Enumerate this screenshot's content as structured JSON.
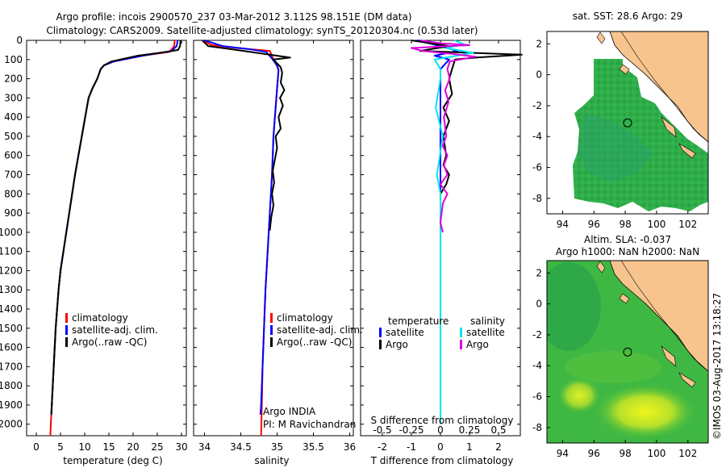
{
  "header": {
    "line1": "Argo profile: incois 2900570_237 03-Mar-2012 3.112S 98.151E (DM data)",
    "line2": "Climatology: CARS2009. Satellite-adjusted climatology: synTS_20120304.nc (0.53d later)"
  },
  "colors": {
    "climatology": "#ff0000",
    "satellite": "#0000ff",
    "argo": "#000000",
    "s_satellite": "#00e5ee",
    "s_argo": "#dd00dd",
    "land": "#f7c48e",
    "sea_green": "#2fae4a",
    "sea_teal": "#2aa36a",
    "sea_yellow": "#e6f21e"
  },
  "depth_axis": {
    "ticks": [
      0,
      100,
      200,
      300,
      400,
      500,
      600,
      700,
      800,
      900,
      1000,
      1100,
      1200,
      1300,
      1400,
      1500,
      1600,
      1700,
      1800,
      1900,
      2000
    ],
    "range": [
      0,
      2060
    ]
  },
  "chart_data": [
    {
      "type": "line",
      "name": "temperature",
      "xlabel": "temperature (deg C)",
      "xlim": [
        -2,
        31
      ],
      "xticks": [
        0,
        5,
        10,
        15,
        20,
        25,
        30
      ],
      "ylim": [
        0,
        2060
      ],
      "series": [
        {
          "name": "climatology",
          "color_key": "climatology",
          "points": [
            [
              28.6,
              0
            ],
            [
              28.5,
              30
            ],
            [
              27.5,
              60
            ],
            [
              22,
              80
            ],
            [
              16,
              110
            ],
            [
              14,
              130
            ],
            [
              13.3,
              150
            ],
            [
              12.6,
              200
            ],
            [
              11.6,
              250
            ],
            [
              10.8,
              300
            ],
            [
              10.1,
              400
            ],
            [
              9.4,
              500
            ],
            [
              8.7,
              600
            ],
            [
              8.0,
              700
            ],
            [
              7.4,
              800
            ],
            [
              6.8,
              900
            ],
            [
              6.2,
              1000
            ],
            [
              5.6,
              1100
            ],
            [
              5.0,
              1200
            ],
            [
              4.6,
              1300
            ],
            [
              4.3,
              1400
            ],
            [
              4.0,
              1500
            ],
            [
              3.8,
              1600
            ],
            [
              3.6,
              1700
            ],
            [
              3.4,
              1800
            ],
            [
              3.2,
              1900
            ],
            [
              3.0,
              2000
            ],
            [
              2.9,
              2060
            ]
          ]
        },
        {
          "name": "satellite-adj. clim.",
          "color_key": "satellite",
          "points": [
            [
              29.2,
              0
            ],
            [
              29.0,
              30
            ],
            [
              28.0,
              55
            ],
            [
              22,
              80
            ],
            [
              16,
              110
            ],
            [
              14,
              130
            ],
            [
              13.3,
              150
            ],
            [
              12.6,
              200
            ],
            [
              11.6,
              250
            ],
            [
              10.8,
              300
            ],
            [
              10.1,
              400
            ],
            [
              9.4,
              500
            ],
            [
              8.7,
              600
            ],
            [
              8.0,
              700
            ],
            [
              7.4,
              800
            ],
            [
              6.8,
              900
            ],
            [
              6.2,
              1000
            ],
            [
              5.6,
              1100
            ],
            [
              5.0,
              1200
            ],
            [
              4.6,
              1300
            ],
            [
              4.3,
              1400
            ],
            [
              4.0,
              1500
            ],
            [
              3.8,
              1600
            ],
            [
              3.6,
              1700
            ],
            [
              3.4,
              1800
            ],
            [
              3.2,
              1900
            ],
            [
              3.1,
              1950
            ]
          ]
        },
        {
          "name": "Argo(..raw -QC)",
          "color_key": "argo",
          "points": [
            [
              29.8,
              0
            ],
            [
              29.7,
              30
            ],
            [
              29.3,
              50
            ],
            [
              27,
              60
            ],
            [
              21,
              80
            ],
            [
              15.5,
              110
            ],
            [
              14,
              130
            ],
            [
              13.3,
              150
            ],
            [
              12.6,
              200
            ],
            [
              11.6,
              250
            ],
            [
              10.8,
              300
            ],
            [
              10.1,
              400
            ],
            [
              9.4,
              500
            ],
            [
              8.7,
              600
            ],
            [
              8.0,
              700
            ],
            [
              7.4,
              800
            ],
            [
              6.8,
              900
            ],
            [
              6.2,
              1000
            ],
            [
              5.6,
              1100
            ],
            [
              5.0,
              1200
            ],
            [
              4.6,
              1300
            ],
            [
              4.3,
              1400
            ],
            [
              4.0,
              1500
            ],
            [
              3.8,
              1600
            ],
            [
              3.6,
              1700
            ],
            [
              3.4,
              1800
            ],
            [
              3.2,
              1900
            ],
            [
              3.1,
              1950
            ]
          ]
        }
      ],
      "legend": [
        {
          "label": "climatology",
          "color_key": "climatology"
        },
        {
          "label": "satellite-adj. clim.",
          "color_key": "satellite"
        },
        {
          "label": "Argo(..raw -QC)",
          "color_key": "argo"
        }
      ]
    },
    {
      "type": "line",
      "name": "salinity",
      "xlabel": "salinity",
      "xlim": [
        33.85,
        36.05
      ],
      "xticks": [
        34,
        34.5,
        35,
        35.5,
        36
      ],
      "ylim": [
        0,
        2060
      ],
      "series": [
        {
          "name": "climatology",
          "color_key": "climatology",
          "points": [
            [
              33.97,
              0
            ],
            [
              34.1,
              25
            ],
            [
              34.45,
              40
            ],
            [
              34.9,
              55
            ],
            [
              34.95,
              100
            ],
            [
              35.02,
              150
            ],
            [
              35.0,
              250
            ],
            [
              34.98,
              350
            ],
            [
              34.95,
              500
            ],
            [
              34.93,
              700
            ],
            [
              34.9,
              900
            ],
            [
              34.87,
              1100
            ],
            [
              34.84,
              1300
            ],
            [
              34.82,
              1500
            ],
            [
              34.8,
              1700
            ],
            [
              34.79,
              1900
            ],
            [
              34.78,
              2060
            ]
          ]
        },
        {
          "name": "satellite-adj. clim.",
          "color_key": "satellite",
          "points": [
            [
              34.0,
              0
            ],
            [
              34.25,
              30
            ],
            [
              34.6,
              45
            ],
            [
              34.85,
              60
            ],
            [
              34.92,
              90
            ],
            [
              35.0,
              130
            ],
            [
              35.02,
              160
            ],
            [
              35.0,
              250
            ],
            [
              34.98,
              350
            ],
            [
              34.95,
              500
            ],
            [
              34.93,
              700
            ],
            [
              34.9,
              900
            ],
            [
              34.87,
              1100
            ],
            [
              34.84,
              1300
            ],
            [
              34.82,
              1500
            ],
            [
              34.8,
              1700
            ],
            [
              34.78,
              1900
            ],
            [
              34.77,
              1950
            ]
          ]
        },
        {
          "name": "Argo(..raw -QC)",
          "color_key": "argo",
          "points": [
            [
              33.97,
              0
            ],
            [
              34.05,
              30
            ],
            [
              34.35,
              45
            ],
            [
              34.9,
              75
            ],
            [
              35.18,
              90
            ],
            [
              34.95,
              100
            ],
            [
              35.05,
              140
            ],
            [
              35.07,
              170
            ],
            [
              35.05,
              220
            ],
            [
              35.1,
              260
            ],
            [
              35.04,
              300
            ],
            [
              35.08,
              340
            ],
            [
              35.02,
              400
            ],
            [
              35.05,
              460
            ],
            [
              34.98,
              500
            ],
            [
              35.0,
              560
            ],
            [
              34.97,
              620
            ],
            [
              34.94,
              680
            ],
            [
              34.96,
              740
            ],
            [
              34.93,
              800
            ],
            [
              34.95,
              860
            ],
            [
              34.92,
              920
            ],
            [
              34.9,
              990
            ]
          ]
        }
      ],
      "legend": [
        {
          "label": "climatology",
          "color_key": "climatology"
        },
        {
          "label": "satellite-adj. clim.",
          "color_key": "satellite"
        },
        {
          "label": "Argo(..raw -QC)",
          "color_key": "argo"
        }
      ],
      "annotations": [
        "Argo INDIA",
        "PI: M Ravichandran"
      ]
    },
    {
      "type": "line",
      "name": "differences",
      "xlabel": "T difference from climatology",
      "xlim": [
        -2.75,
        2.75
      ],
      "xticks": [
        -2,
        -1,
        0,
        1,
        2
      ],
      "top_xlabel": "S difference from climatology",
      "top_xticks": [
        -0.5,
        -0.25,
        0,
        0.25,
        0.5
      ],
      "ylim": [
        0,
        2060
      ],
      "series": [
        {
          "name": "temperature satellite",
          "color_key": "satellite",
          "units": "T",
          "points": [
            [
              -0.8,
              0
            ],
            [
              0.0,
              30
            ],
            [
              0.6,
              55
            ],
            [
              -0.2,
              80
            ],
            [
              0.3,
              100
            ],
            [
              0.0,
              150
            ],
            [
              0.0,
              2000
            ]
          ]
        },
        {
          "name": "temperature Argo",
          "color_key": "argo",
          "units": "T",
          "points": [
            [
              -1.0,
              0
            ],
            [
              0.3,
              30
            ],
            [
              -0.7,
              55
            ],
            [
              2.8,
              75
            ],
            [
              1.2,
              90
            ],
            [
              0.5,
              100
            ],
            [
              0.4,
              150
            ],
            [
              0.3,
              200
            ],
            [
              0.4,
              280
            ],
            [
              0.1,
              350
            ],
            [
              0.3,
              420
            ],
            [
              0.1,
              500
            ],
            [
              0.2,
              600
            ],
            [
              0.1,
              650
            ],
            [
              0.3,
              700
            ],
            [
              0.2,
              750
            ],
            [
              0.0,
              800
            ],
            [
              0.0,
              850
            ],
            [
              0.0,
              990
            ]
          ]
        },
        {
          "name": "salinity satellite",
          "color_key": "s_satellite",
          "units": "S",
          "points": [
            [
              0.12,
              0
            ],
            [
              0.2,
              20
            ],
            [
              0.05,
              40
            ],
            [
              0.28,
              65
            ],
            [
              -0.05,
              100
            ],
            [
              0.0,
              150
            ],
            [
              0.0,
              200
            ],
            [
              -0.04,
              350
            ],
            [
              0.02,
              500
            ],
            [
              -0.03,
              700
            ],
            [
              0.0,
              800
            ],
            [
              0.0,
              1000
            ],
            [
              0.0,
              1300
            ],
            [
              0.0,
              1600
            ],
            [
              0.0,
              2000
            ]
          ]
        },
        {
          "name": "salinity Argo",
          "color_key": "s_argo",
          "units": "S",
          "points": [
            [
              -0.17,
              0
            ],
            [
              0.0,
              15
            ],
            [
              0.25,
              25
            ],
            [
              -0.25,
              40
            ],
            [
              -0.15,
              55
            ],
            [
              0.1,
              70
            ],
            [
              0.3,
              85
            ],
            [
              0.08,
              110
            ],
            [
              0.06,
              150
            ],
            [
              0.08,
              200
            ],
            [
              0.04,
              260
            ],
            [
              0.07,
              320
            ],
            [
              0.03,
              400
            ],
            [
              0.05,
              500
            ],
            [
              0.02,
              550
            ],
            [
              0.06,
              600
            ],
            [
              0.03,
              650
            ],
            [
              0.06,
              700
            ],
            [
              0.0,
              750
            ],
            [
              0.06,
              800
            ],
            [
              0.02,
              850
            ],
            [
              0.0,
              950
            ],
            [
              0.02,
              1000
            ]
          ]
        }
      ],
      "legend": {
        "temperature_title": "temperature",
        "salinity_title": "salinity",
        "items": [
          {
            "label": "satellite",
            "color_key": "satellite",
            "group": "temperature"
          },
          {
            "label": "Argo",
            "color_key": "argo",
            "group": "temperature"
          },
          {
            "label": "satellite",
            "color_key": "s_satellite",
            "group": "salinity"
          },
          {
            "label": "Argo",
            "color_key": "s_argo",
            "group": "salinity"
          }
        ]
      }
    }
  ],
  "maps": {
    "sst": {
      "title": "sat. SST: 28.6 Argo: 29",
      "lon_ticks": [
        94,
        96,
        98,
        100,
        102
      ],
      "lat_ticks": [
        2,
        0,
        -2,
        -4,
        -6,
        -8
      ],
      "lon_range": [
        93.0,
        103.3
      ],
      "lat_range": [
        -9.0,
        2.8
      ],
      "profile": [
        98.15,
        -3.11
      ]
    },
    "sla": {
      "title_line1": "Altim. SLA: -0.037",
      "title_line2": "Argo h1000: NaN h2000: NaN",
      "lon_ticks": [
        94,
        96,
        98,
        100,
        102
      ],
      "lat_ticks": [
        2,
        0,
        -2,
        -4,
        -6,
        -8
      ],
      "lon_range": [
        93.0,
        103.3
      ],
      "lat_range": [
        -9.0,
        2.8
      ],
      "profile": [
        98.15,
        -3.11
      ]
    }
  },
  "credit": "©IMOS 03-Aug-2017 13:18:27"
}
